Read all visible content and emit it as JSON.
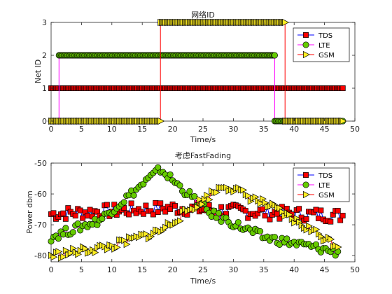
{
  "colors": {
    "TDS_line": "#0000ff",
    "TDS_marker": "#ff0000",
    "LTE_line": "#ff00ff",
    "LTE_marker": "#66cc00",
    "GSM_line": "#ff0000",
    "GSM_marker": "#ffee22",
    "edge": "#000000"
  },
  "chart_data": [
    {
      "type": "line",
      "title": "网络ID",
      "xlabel": "Time/s",
      "ylabel": "Net ID",
      "xlim": [
        0,
        50
      ],
      "ylim": [
        0,
        3
      ],
      "xticks": [
        "0",
        "5",
        "10",
        "15",
        "20",
        "25",
        "30",
        "35",
        "40",
        "45",
        "50"
      ],
      "yticks": [
        "0",
        "1",
        "2",
        "3"
      ],
      "legend_position": "top-right",
      "sample_step": 0.2,
      "series": [
        {
          "name": "TDS",
          "marker": "square",
          "segments": [
            {
              "x_start": 0,
              "x_end": 48,
              "y": 1
            }
          ]
        },
        {
          "name": "LTE",
          "marker": "circle",
          "segments": [
            {
              "x_start": 0,
              "x_end": 1.3,
              "y": 0
            },
            {
              "x_start": 1.3,
              "x_end": 36.8,
              "y": 2
            },
            {
              "x_start": 36.8,
              "x_end": 48,
              "y": 0
            }
          ]
        },
        {
          "name": "GSM",
          "marker": "triangle-right",
          "segments": [
            {
              "x_start": 0,
              "x_end": 18,
              "y": 0
            },
            {
              "x_start": 18,
              "x_end": 38.5,
              "y": 3
            },
            {
              "x_start": 38.5,
              "x_end": 48,
              "y": 0
            }
          ]
        }
      ]
    },
    {
      "type": "line",
      "title": "考虑FastFading",
      "xlabel": "Time/s",
      "ylabel": "Power dbm",
      "xlim": [
        0,
        50
      ],
      "ylim": [
        -82,
        -50
      ],
      "xticks": [
        "0",
        "5",
        "10",
        "15",
        "20",
        "25",
        "30",
        "35",
        "40",
        "45",
        "50"
      ],
      "yticks": [
        "-80",
        "-70",
        "-60",
        "-50"
      ],
      "legend_position": "top-right",
      "sample_step": 0.4,
      "series": [
        {
          "name": "TDS",
          "marker": "square",
          "trend": [
            [
              0,
              -66.5
            ],
            [
              10,
              -65.5
            ],
            [
              20,
              -64.5
            ],
            [
              30,
              -65.5
            ],
            [
              40,
              -66.5
            ],
            [
              48,
              -67
            ]
          ],
          "jitter": 2.2
        },
        {
          "name": "LTE",
          "marker": "circle",
          "trend": [
            [
              0,
              -74
            ],
            [
              8,
              -68.5
            ],
            [
              18,
              -52
            ],
            [
              26,
              -66
            ],
            [
              35,
              -74
            ],
            [
              47.5,
              -79
            ]
          ],
          "jitter": 1.4
        },
        {
          "name": "GSM",
          "marker": "triangle-right",
          "trend": [
            [
              0,
              -80
            ],
            [
              10,
              -77
            ],
            [
              18,
              -72
            ],
            [
              28.5,
              -57
            ],
            [
              36,
              -64
            ],
            [
              47.5,
              -77
            ]
          ],
          "jitter": 1.4
        }
      ]
    }
  ]
}
